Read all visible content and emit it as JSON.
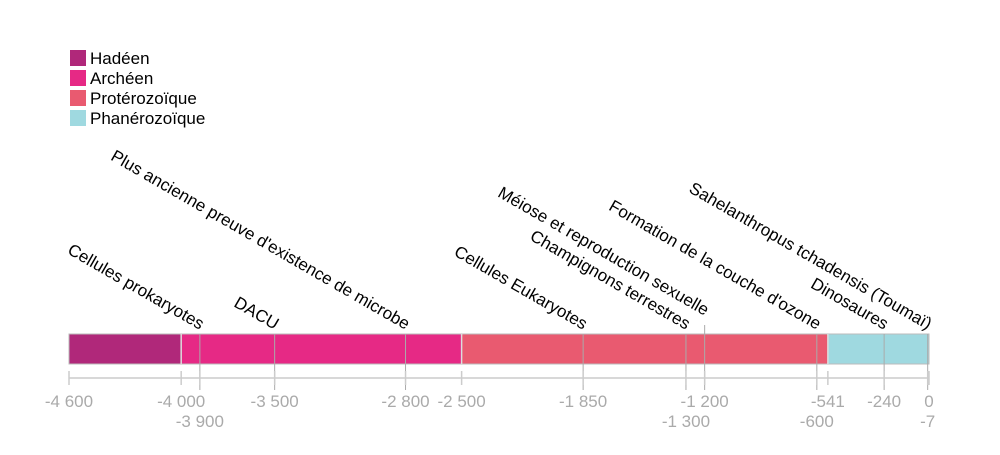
{
  "chart_data": {
    "type": "timeline",
    "xlim": [
      -4600,
      0
    ],
    "legend_placement": "top-left",
    "eras": [
      {
        "name": "Hadéen",
        "start": -4600,
        "end": -4000,
        "color": "#b0287a"
      },
      {
        "name": "Archéen",
        "start": -4000,
        "end": -2500,
        "color": "#e62985"
      },
      {
        "name": "Protérozoïque",
        "start": -2500,
        "end": -541,
        "color": "#e95a70"
      },
      {
        "name": "Phanérozoïque",
        "start": -541,
        "end": 0,
        "color": "#9fd9e0"
      }
    ],
    "events": [
      {
        "label": "Cellules prokaryotes",
        "x": -3900
      },
      {
        "label": "DACU",
        "x": -3500
      },
      {
        "label": "Plus ancienne preuve d'existence de microbe",
        "x": -2800
      },
      {
        "label": "Cellules Eukaryotes",
        "x": -1850
      },
      {
        "label": "Champignons terrestres",
        "x": -1300
      },
      {
        "label": "Méiose et reproduction sexuelle",
        "x": -1200
      },
      {
        "label": "Formation de la couche d'ozone",
        "x": -600
      },
      {
        "label": "Dinosaures",
        "x": -240
      },
      {
        "label": "Sahelanthropus tchadensis (Toumaï)",
        "x": -7
      }
    ],
    "ticks": [
      {
        "value": -4600,
        "label": "-4 600",
        "row": 0
      },
      {
        "value": -4000,
        "label": "-4 000",
        "row": 0
      },
      {
        "value": -3900,
        "label": "-3 900",
        "row": 1
      },
      {
        "value": -3500,
        "label": "-3 500",
        "row": 0
      },
      {
        "value": -2800,
        "label": "-2 800",
        "row": 0
      },
      {
        "value": -2500,
        "label": "-2 500",
        "row": 0
      },
      {
        "value": -1850,
        "label": "-1 850",
        "row": 0
      },
      {
        "value": -1300,
        "label": "-1 300",
        "row": 1
      },
      {
        "value": -1200,
        "label": "-1 200",
        "row": 0
      },
      {
        "value": -600,
        "label": "-600",
        "row": 1
      },
      {
        "value": -541,
        "label": "-541",
        "row": 0
      },
      {
        "value": -240,
        "label": "-240",
        "row": 0
      },
      {
        "value": -7,
        "label": "-7",
        "row": 1
      },
      {
        "value": 0,
        "label": "0",
        "row": 0
      }
    ]
  }
}
